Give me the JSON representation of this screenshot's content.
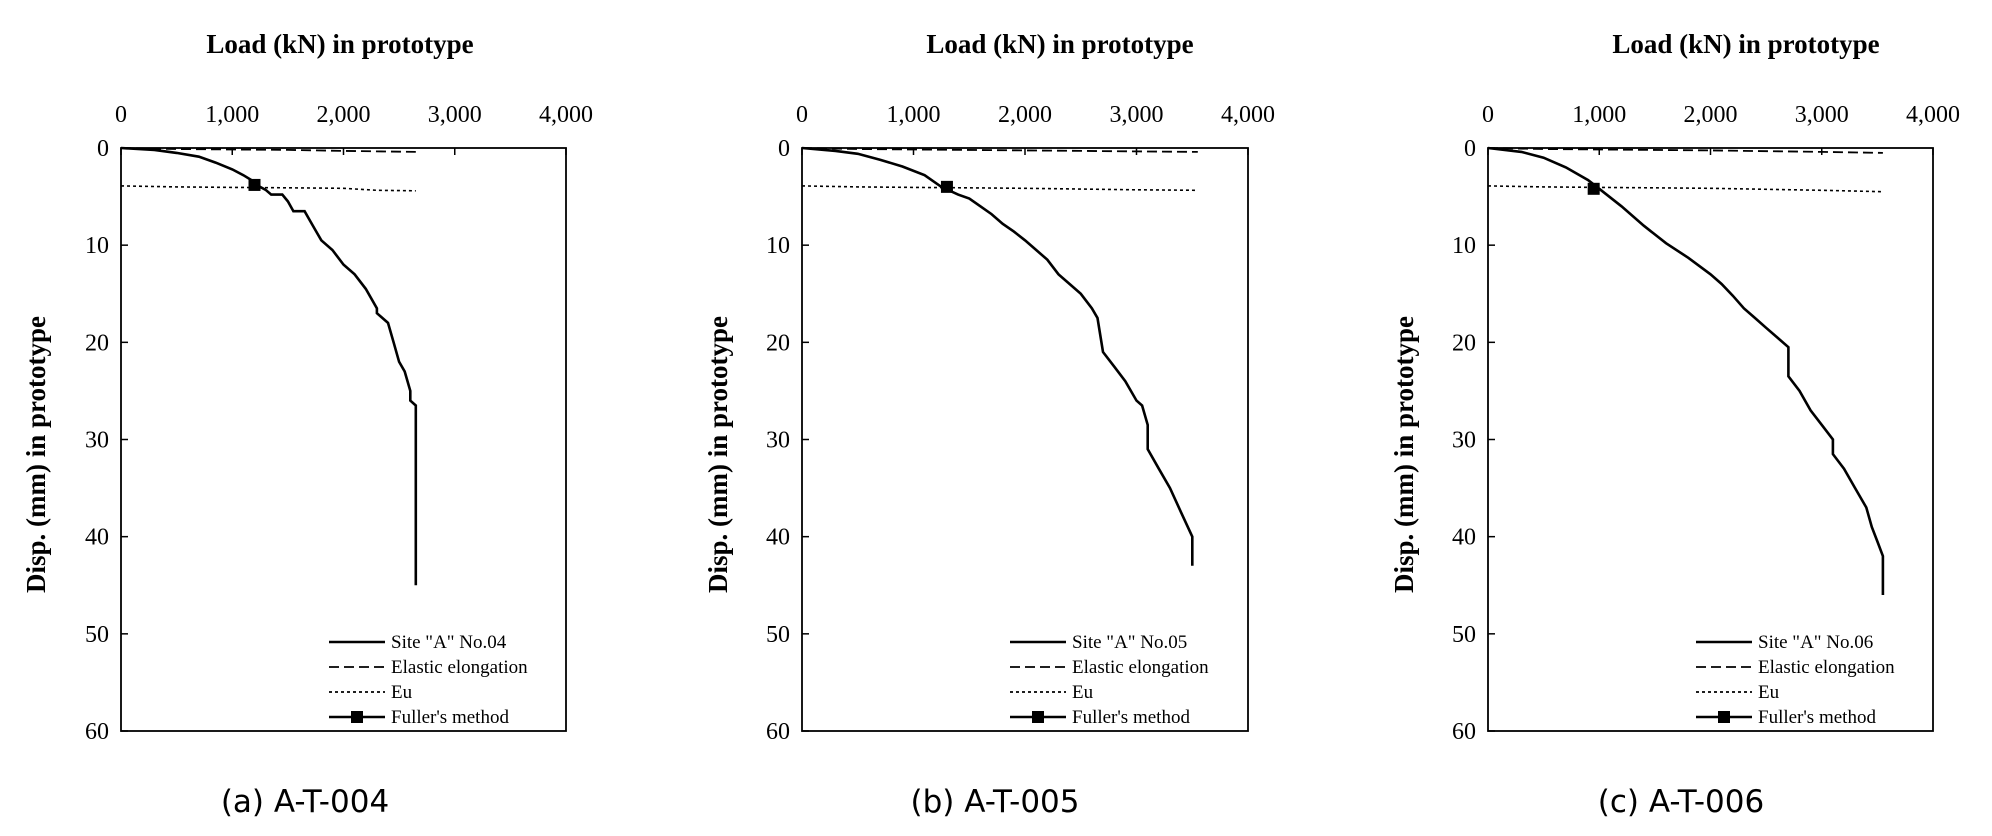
{
  "chart_data": [
    {
      "type": "line",
      "caption": "(a) A-T-004",
      "title": "Load (kN) in prototype",
      "xlabel": "Load (kN) in prototype",
      "ylabel": "Disp. (mm) in prototype",
      "xlim": [
        0,
        4000
      ],
      "ylim": [
        0,
        60
      ],
      "y_inverted": true,
      "x_axis_position": "top",
      "x_ticks": [
        0,
        1000,
        2000,
        3000,
        4000
      ],
      "x_tick_labels": [
        "0",
        "1,000",
        "2,000",
        "3,000",
        "4,000"
      ],
      "y_ticks": [
        0,
        10,
        20,
        30,
        40,
        50,
        60
      ],
      "y_tick_labels": [
        "0",
        "10",
        "20",
        "30",
        "40",
        "50",
        "60"
      ],
      "grid": false,
      "legend_position": "bottom-right",
      "series": [
        {
          "name": "Site \"A\" No.04",
          "style": "solid",
          "x": [
            0,
            300,
            500,
            700,
            850,
            1000,
            1100,
            1200,
            1250,
            1300,
            1350,
            1450,
            1500,
            1550,
            1650,
            1700,
            1750,
            1800,
            1900,
            2000,
            2100,
            2200,
            2300,
            2300,
            2400,
            2450,
            2500,
            2550,
            2600,
            2600,
            2650,
            2650,
            2650
          ],
          "y": [
            0,
            0.2,
            0.5,
            0.9,
            1.5,
            2.2,
            2.8,
            3.5,
            4.0,
            4.3,
            4.8,
            4.8,
            5.5,
            6.5,
            6.5,
            7.5,
            8.5,
            9.5,
            10.5,
            12.0,
            13.0,
            14.5,
            16.5,
            17.0,
            18.0,
            20.0,
            22.0,
            23.0,
            25.0,
            26.0,
            26.5,
            27.0,
            45.0
          ]
        },
        {
          "name": "Elastic elongation",
          "style": "dashed",
          "x": [
            0,
            500,
            1000,
            1500,
            2000,
            2650
          ],
          "y": [
            0,
            0.1,
            0.15,
            0.2,
            0.3,
            0.4
          ]
        },
        {
          "name": "Eu",
          "style": "dotted",
          "x": [
            0,
            500,
            1000,
            1500,
            2000,
            2300,
            2650
          ],
          "y": [
            3.9,
            4.0,
            4.05,
            4.1,
            4.15,
            4.35,
            4.4
          ]
        },
        {
          "name": "Fuller's method",
          "style": "marker",
          "x": [
            1200
          ],
          "y": [
            3.8
          ]
        }
      ]
    },
    {
      "type": "line",
      "caption": "(b) A-T-005",
      "title": "Load (kN) in prototype",
      "xlabel": "Load (kN) in prototype",
      "ylabel": "Disp. (mm) in prototype",
      "xlim": [
        0,
        4000
      ],
      "ylim": [
        0,
        60
      ],
      "y_inverted": true,
      "x_axis_position": "top",
      "x_ticks": [
        0,
        1000,
        2000,
        3000,
        4000
      ],
      "x_tick_labels": [
        "0",
        "1,000",
        "2,000",
        "3,000",
        "4,000"
      ],
      "y_ticks": [
        0,
        10,
        20,
        30,
        40,
        50,
        60
      ],
      "y_tick_labels": [
        "0",
        "10",
        "20",
        "30",
        "40",
        "50",
        "60"
      ],
      "grid": false,
      "legend_position": "bottom-right",
      "series": [
        {
          "name": "Site \"A\" No.05",
          "style": "solid",
          "x": [
            0,
            300,
            500,
            700,
            900,
            1100,
            1250,
            1400,
            1500,
            1600,
            1700,
            1800,
            1900,
            2000,
            2100,
            2200,
            2300,
            2400,
            2500,
            2600,
            2650,
            2700,
            2800,
            2900,
            3000,
            3050,
            3100,
            3100,
            3200,
            3300,
            3400,
            3500,
            3500
          ],
          "y": [
            0,
            0.3,
            0.6,
            1.2,
            1.9,
            2.8,
            4.0,
            4.8,
            5.2,
            6.0,
            6.8,
            7.8,
            8.6,
            9.5,
            10.5,
            11.5,
            13.0,
            14.0,
            15.0,
            16.5,
            17.5,
            21.0,
            22.5,
            24.0,
            26.0,
            26.5,
            28.5,
            31.0,
            33.0,
            35.0,
            37.5,
            40.0,
            43.0
          ]
        },
        {
          "name": "Elastic elongation",
          "style": "dashed",
          "x": [
            0,
            500,
            1000,
            2000,
            3000,
            3550
          ],
          "y": [
            0,
            0.1,
            0.15,
            0.25,
            0.35,
            0.4
          ]
        },
        {
          "name": "Eu",
          "style": "dotted",
          "x": [
            0,
            500,
            1000,
            2000,
            3000,
            3550
          ],
          "y": [
            3.9,
            4.0,
            4.05,
            4.15,
            4.3,
            4.35
          ]
        },
        {
          "name": "Fuller's method",
          "style": "marker",
          "x": [
            1300
          ],
          "y": [
            4.0
          ]
        }
      ]
    },
    {
      "type": "line",
      "caption": "(c) A-T-006",
      "title": "Load (kN) in prototype",
      "xlabel": "Load (kN) in prototype",
      "ylabel": "Disp. (mm) in prototype",
      "xlim": [
        0,
        4000
      ],
      "ylim": [
        0,
        60
      ],
      "y_inverted": true,
      "x_axis_position": "top",
      "x_ticks": [
        0,
        1000,
        2000,
        3000,
        4000
      ],
      "x_tick_labels": [
        "0",
        "1,000",
        "2,000",
        "3,000",
        "4,000"
      ],
      "y_ticks": [
        0,
        10,
        20,
        30,
        40,
        50,
        60
      ],
      "y_tick_labels": [
        "0",
        "10",
        "20",
        "30",
        "40",
        "50",
        "60"
      ],
      "grid": false,
      "legend_position": "bottom-right",
      "series": [
        {
          "name": "Site \"A\" No.06",
          "style": "solid",
          "x": [
            0,
            300,
            500,
            700,
            900,
            1000,
            1200,
            1400,
            1600,
            1800,
            2000,
            2100,
            2200,
            2300,
            2400,
            2500,
            2600,
            2700,
            2700,
            2800,
            2900,
            3000,
            3100,
            3100,
            3200,
            3300,
            3400,
            3450,
            3500,
            3550,
            3550
          ],
          "y": [
            0,
            0.4,
            1.0,
            2.0,
            3.3,
            4.2,
            6.0,
            8.0,
            9.8,
            11.3,
            13.0,
            14.0,
            15.2,
            16.5,
            17.5,
            18.5,
            19.5,
            20.5,
            23.5,
            25.0,
            27.0,
            28.5,
            30.0,
            31.5,
            33.0,
            35.0,
            37.0,
            39.0,
            40.5,
            42.0,
            46.0
          ]
        },
        {
          "name": "Elastic elongation",
          "style": "dashed",
          "x": [
            0,
            500,
            1000,
            2000,
            3000,
            3550
          ],
          "y": [
            0,
            0.1,
            0.15,
            0.25,
            0.4,
            0.5
          ]
        },
        {
          "name": "Eu",
          "style": "dotted",
          "x": [
            0,
            500,
            1000,
            2000,
            3000,
            3550
          ],
          "y": [
            3.9,
            4.0,
            4.05,
            4.15,
            4.35,
            4.5
          ]
        },
        {
          "name": "Fuller's method",
          "style": "marker",
          "x": [
            950
          ],
          "y": [
            4.2
          ]
        }
      ]
    }
  ]
}
